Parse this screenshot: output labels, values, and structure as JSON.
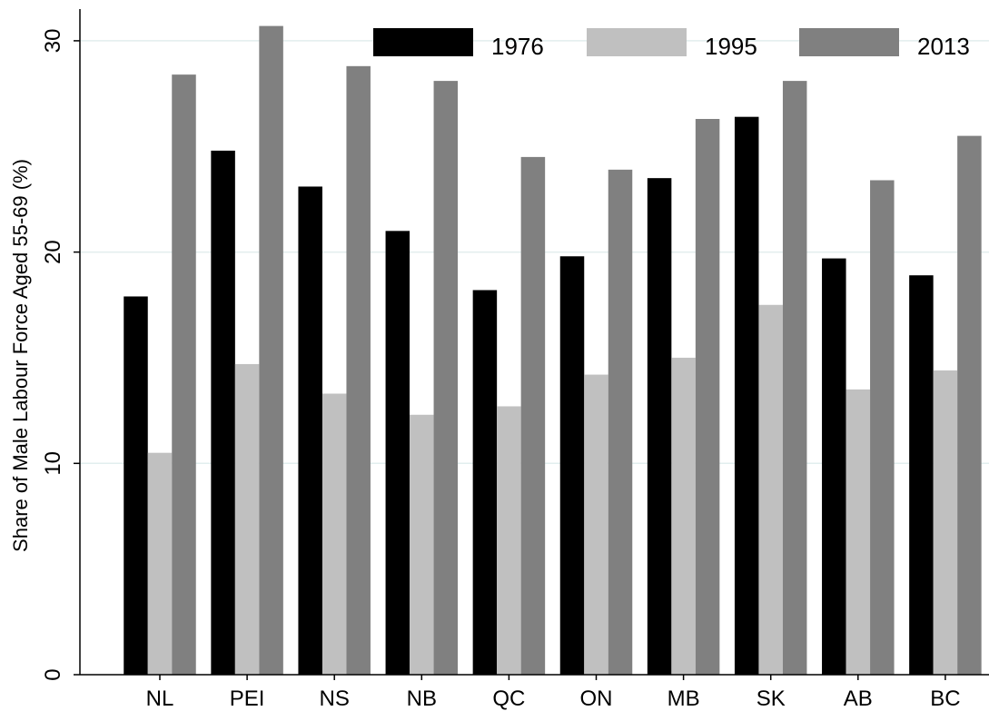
{
  "chart_data": {
    "type": "bar",
    "title": "",
    "xlabel": "",
    "ylabel": "Share of Male Labour Force Aged 55-69 (%)",
    "ylim": [
      0,
      31.5
    ],
    "yticks": [
      0,
      10,
      20,
      30
    ],
    "grid": true,
    "legend_position": "top",
    "categories": [
      "NL",
      "PEI",
      "NS",
      "NB",
      "QC",
      "ON",
      "MB",
      "SK",
      "AB",
      "BC"
    ],
    "series": [
      {
        "name": "1976",
        "color": "#000000",
        "values": [
          17.9,
          24.8,
          23.1,
          21.0,
          18.2,
          19.8,
          23.5,
          26.4,
          19.7,
          18.9
        ]
      },
      {
        "name": "1995",
        "color": "#c0c0c0",
        "values": [
          10.5,
          14.7,
          13.3,
          12.3,
          12.7,
          14.2,
          15.0,
          17.5,
          13.5,
          14.4
        ]
      },
      {
        "name": "2013",
        "color": "#808080",
        "values": [
          28.4,
          30.7,
          28.8,
          28.1,
          24.5,
          23.9,
          26.3,
          28.1,
          23.4,
          25.5
        ]
      }
    ]
  }
}
